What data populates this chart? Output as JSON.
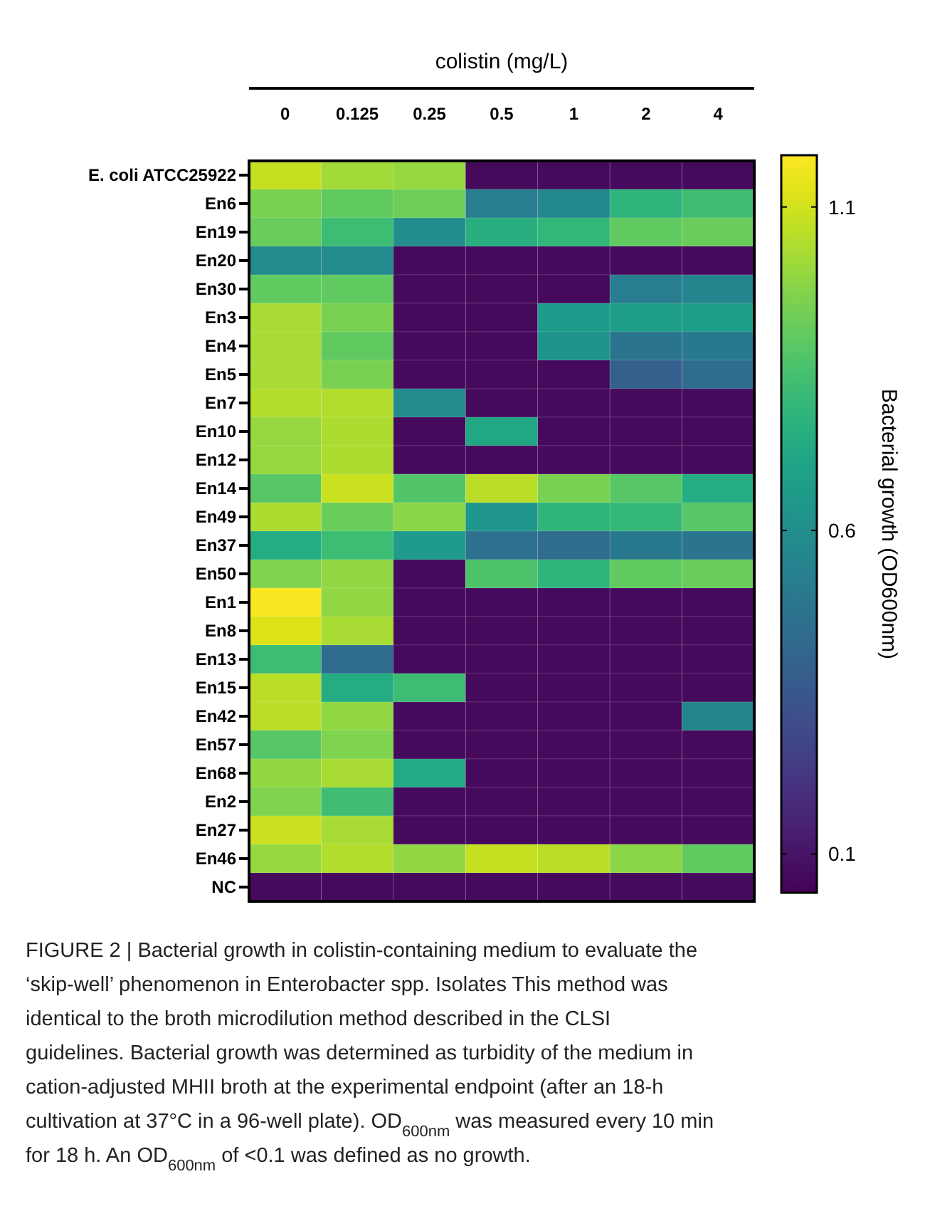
{
  "chart_data": {
    "type": "heatmap",
    "title": "colistin (mg/L)",
    "clabel": "Bacterial growth (OD600nm)",
    "categories": [
      "0",
      "0.125",
      "0.25",
      "0.5",
      "1",
      "2",
      "4"
    ],
    "y_categories": [
      "E. coli ATCC25922",
      "En6",
      "En19",
      "En20",
      "En30",
      "En3",
      "En4",
      "En5",
      "En7",
      "En10",
      "En12",
      "En14",
      "En49",
      "En37",
      "En50",
      "En1",
      "En8",
      "En13",
      "En15",
      "En42",
      "En57",
      "En68",
      "En2",
      "En27",
      "En46",
      "NC"
    ],
    "cells": [
      [
        1.08,
        1.02,
        1.0,
        0.07,
        0.07,
        0.07,
        0.07
      ],
      [
        0.95,
        0.9,
        0.93,
        0.52,
        0.57,
        0.78,
        0.83
      ],
      [
        0.92,
        0.82,
        0.6,
        0.76,
        0.79,
        0.9,
        0.92
      ],
      [
        0.58,
        0.58,
        0.07,
        0.07,
        0.07,
        0.07,
        0.07
      ],
      [
        0.9,
        0.9,
        0.07,
        0.07,
        0.07,
        0.52,
        0.56
      ],
      [
        1.03,
        0.95,
        0.07,
        0.07,
        0.66,
        0.67,
        0.67
      ],
      [
        1.03,
        0.9,
        0.07,
        0.07,
        0.63,
        0.48,
        0.5
      ],
      [
        1.03,
        0.95,
        0.07,
        0.07,
        0.07,
        0.38,
        0.44
      ],
      [
        1.05,
        1.05,
        0.58,
        0.07,
        0.07,
        0.07,
        0.07
      ],
      [
        1.0,
        1.04,
        0.07,
        0.72,
        0.07,
        0.07,
        0.07
      ],
      [
        1.0,
        1.04,
        0.07,
        0.07,
        0.07,
        0.07,
        0.07
      ],
      [
        0.88,
        1.09,
        0.87,
        1.06,
        0.95,
        0.88,
        0.74
      ],
      [
        1.04,
        0.92,
        0.98,
        0.64,
        0.78,
        0.8,
        0.88
      ],
      [
        0.74,
        0.82,
        0.66,
        0.46,
        0.44,
        0.5,
        0.48
      ],
      [
        0.96,
        0.99,
        0.07,
        0.86,
        0.78,
        0.9,
        0.92
      ],
      [
        1.17,
        0.99,
        0.07,
        0.07,
        0.07,
        0.07,
        0.07
      ],
      [
        1.12,
        1.03,
        0.07,
        0.07,
        0.07,
        0.07,
        0.07
      ],
      [
        0.82,
        0.44,
        0.07,
        0.07,
        0.07,
        0.07,
        0.07
      ],
      [
        1.06,
        0.74,
        0.82,
        0.07,
        0.07,
        0.07,
        0.07
      ],
      [
        1.06,
        0.99,
        0.07,
        0.07,
        0.07,
        0.07,
        0.56
      ],
      [
        0.88,
        0.96,
        0.07,
        0.07,
        0.07,
        0.07,
        0.07
      ],
      [
        0.99,
        1.03,
        0.73,
        0.07,
        0.07,
        0.07,
        0.07
      ],
      [
        0.96,
        0.83,
        0.07,
        0.07,
        0.07,
        0.07,
        0.07
      ],
      [
        1.09,
        1.03,
        0.07,
        0.07,
        0.07,
        0.07,
        0.07
      ],
      [
        1.0,
        1.05,
        0.99,
        1.08,
        1.06,
        0.98,
        0.9
      ],
      [
        0.07,
        0.07,
        0.07,
        0.07,
        0.07,
        0.07,
        0.07
      ]
    ],
    "clim": [
      0.04,
      1.18
    ],
    "cticks": [
      0.1,
      0.6,
      1.1
    ],
    "annotations": [
      "FIGURE 2 | Bacterial growth in colistin-containing medium to evaluate the ‘skip-well’ phenomenon in Enterobacter spp. Isolates This method was identical to the broth microdilution method described in the CLSI guidelines. Bacterial growth was determined as turbidity of the medium in cation-adjusted MHII broth at the experimental endpoint (after an 18-h cultivation at 37°C in a 96-well plate). OD$_{600nm}$ was measured every 10 min for 18 h. An OD$_{600nm}$ of <0.1 was defined as no growth."
    ]
  }
}
